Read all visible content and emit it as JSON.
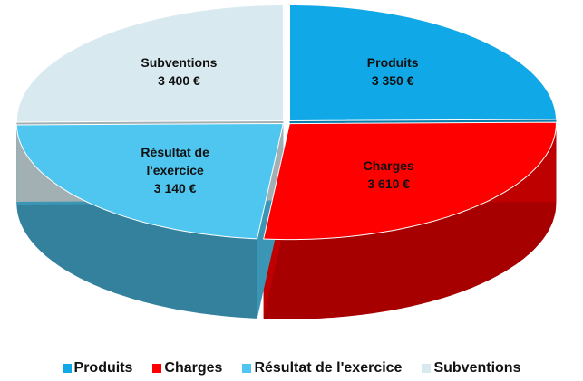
{
  "chart_data": {
    "type": "pie3d",
    "categories": [
      "Produits",
      "Charges",
      "Résultat de l'exercice",
      "Subventions"
    ],
    "values": [
      3350,
      3610,
      3140,
      3400
    ],
    "value_labels": [
      "3 350 €",
      "3 610 €",
      "3 140 €",
      "3 400 €"
    ],
    "colors": [
      "#10a8e6",
      "#ff0000",
      "#4ec6f0",
      "#d8eaf0"
    ],
    "legend": "bottom"
  }
}
